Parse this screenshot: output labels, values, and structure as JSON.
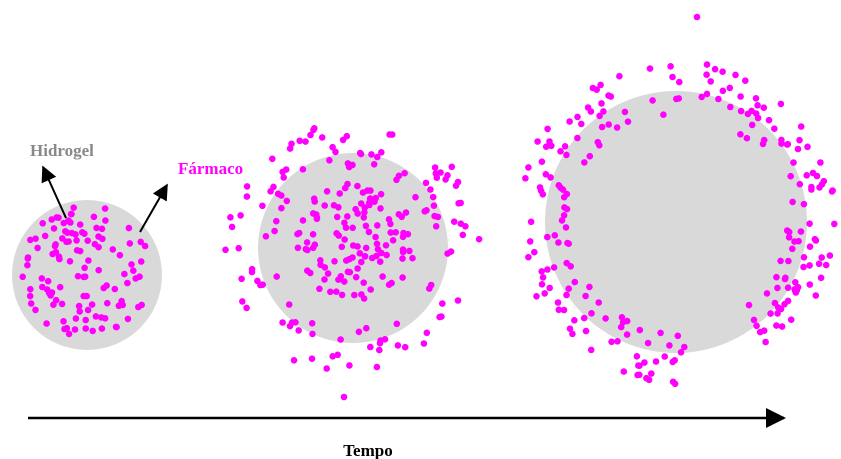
{
  "labels": {
    "hydrogel": "Hidrogel",
    "drug": "Fármaco",
    "axis": "Tempo"
  }
}
